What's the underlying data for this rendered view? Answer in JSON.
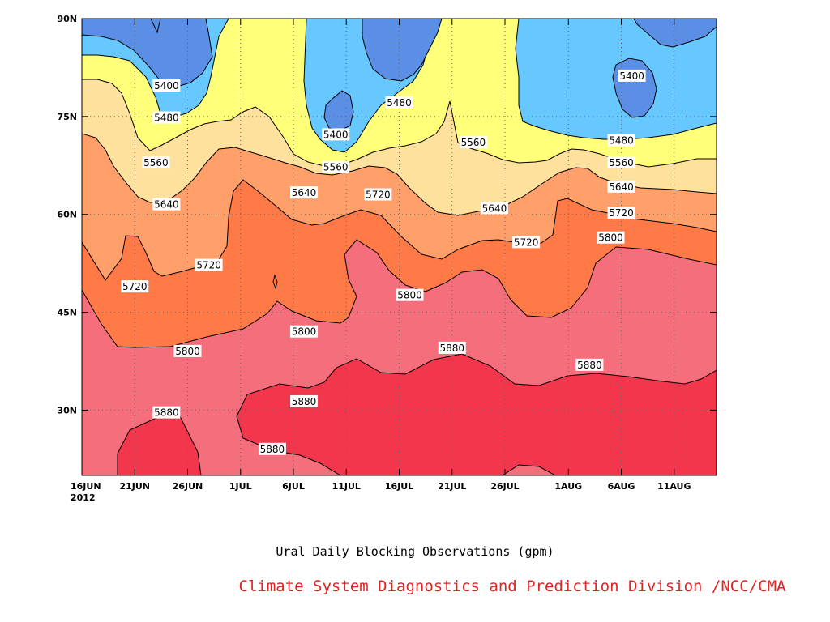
{
  "colors": {
    "c_5400": "#5b8fe6",
    "c_5480": "#66c8ff",
    "c_5560": "#ffff7a",
    "c_5640": "#ffe19e",
    "c_5720": "#ffa06b",
    "c_5800": "#ff7a47",
    "c_5880": "#f46e7c",
    "c_5960": "#f2364b",
    "credit": "#e02424"
  },
  "chart_data": {
    "type": "heatmap",
    "title": "Ural Daily Blocking Observations (gpm)",
    "credit": "Climate System Diagnostics and Prediction Division /NCC/CMA",
    "x_axis": {
      "type": "date",
      "range": [
        "2012-06-16",
        "2012-08-15"
      ],
      "ticks": [
        {
          "date": "2012-06-16",
          "label": "16JUN"
        },
        {
          "date": "2012-06-21",
          "label": "21JUN"
        },
        {
          "date": "2012-06-26",
          "label": "26JUN"
        },
        {
          "date": "2012-07-01",
          "label": "1JUL"
        },
        {
          "date": "2012-07-06",
          "label": "6JUL"
        },
        {
          "date": "2012-07-11",
          "label": "11JUL"
        },
        {
          "date": "2012-07-16",
          "label": "16JUL"
        },
        {
          "date": "2012-07-21",
          "label": "21JUL"
        },
        {
          "date": "2012-07-26",
          "label": "26JUL"
        },
        {
          "date": "2012-08-01",
          "label": "1AUG"
        },
        {
          "date": "2012-08-06",
          "label": "6AUG"
        },
        {
          "date": "2012-08-11",
          "label": "11AUG"
        }
      ],
      "year_label": "2012"
    },
    "y_axis": {
      "range": [
        20,
        90
      ],
      "ticks": [
        {
          "lat": 30,
          "label": "30N"
        },
        {
          "lat": 45,
          "label": "45N"
        },
        {
          "lat": 60,
          "label": "60N"
        },
        {
          "lat": 75,
          "label": "75N"
        },
        {
          "lat": 90,
          "label": "90N"
        }
      ]
    },
    "grid": "dotted",
    "contour_levels": [
      5400,
      5480,
      5560,
      5640,
      5720,
      5800,
      5880
    ],
    "contour_labels": [
      {
        "text": "5400",
        "date": "2012-06-24",
        "lat": 79.7
      },
      {
        "text": "5480",
        "date": "2012-06-24",
        "lat": 74.8
      },
      {
        "text": "5560",
        "date": "2012-06-23",
        "lat": 67.9
      },
      {
        "text": "5640",
        "date": "2012-06-24",
        "lat": 61.5
      },
      {
        "text": "5720",
        "date": "2012-06-21",
        "lat": 48.9
      },
      {
        "text": "5720",
        "date": "2012-06-28",
        "lat": 52.2
      },
      {
        "text": "5800",
        "date": "2012-06-26",
        "lat": 39.0
      },
      {
        "text": "5880",
        "date": "2012-06-24",
        "lat": 29.6
      },
      {
        "text": "5880",
        "date": "2012-07-04",
        "lat": 24.0
      },
      {
        "text": "5880",
        "date": "2012-07-07",
        "lat": 31.3
      },
      {
        "text": "5800",
        "date": "2012-07-07",
        "lat": 42.0
      },
      {
        "text": "5640",
        "date": "2012-07-07",
        "lat": 63.3
      },
      {
        "text": "5560",
        "date": "2012-07-10",
        "lat": 67.2
      },
      {
        "text": "5400",
        "date": "2012-07-10",
        "lat": 72.2
      },
      {
        "text": "5720",
        "date": "2012-07-14",
        "lat": 63.0
      },
      {
        "text": "5480",
        "date": "2012-07-16",
        "lat": 77.1
      },
      {
        "text": "5800",
        "date": "2012-07-17",
        "lat": 47.6
      },
      {
        "text": "5880",
        "date": "2012-07-21",
        "lat": 39.5
      },
      {
        "text": "5560",
        "date": "2012-07-23",
        "lat": 71.0
      },
      {
        "text": "5640",
        "date": "2012-07-25",
        "lat": 60.9
      },
      {
        "text": "5720",
        "date": "2012-07-28",
        "lat": 55.7
      },
      {
        "text": "5880",
        "date": "2012-08-03",
        "lat": 36.9
      },
      {
        "text": "5800",
        "date": "2012-08-05",
        "lat": 56.4
      },
      {
        "text": "5720",
        "date": "2012-08-06",
        "lat": 60.2
      },
      {
        "text": "5640",
        "date": "2012-08-06",
        "lat": 64.2
      },
      {
        "text": "5560",
        "date": "2012-08-06",
        "lat": 67.9
      },
      {
        "text": "5480",
        "date": "2012-08-06",
        "lat": 71.3
      },
      {
        "text": "5400",
        "date": "2012-08-07",
        "lat": 81.2
      }
    ]
  }
}
